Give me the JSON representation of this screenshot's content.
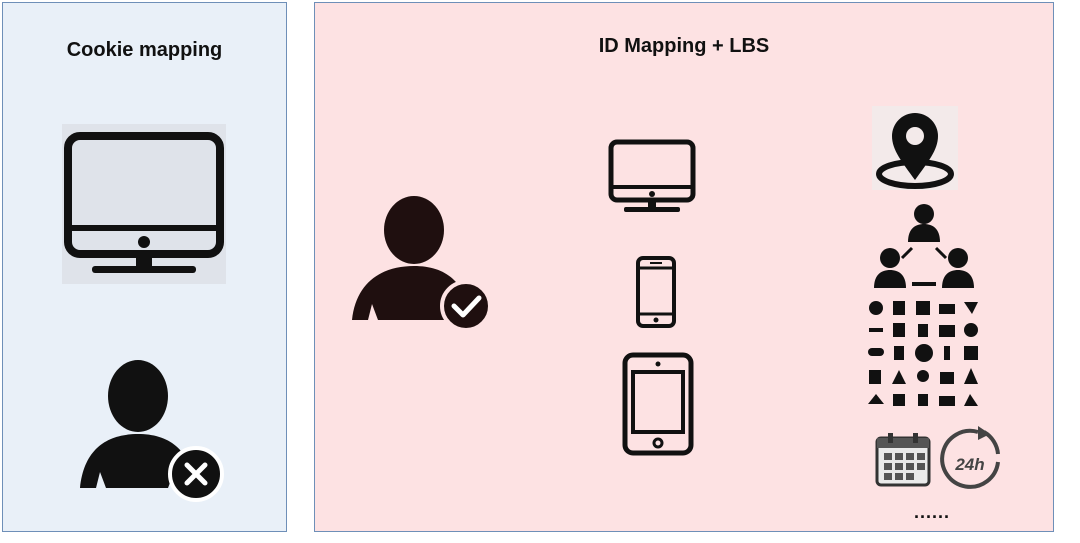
{
  "left_panel": {
    "title": "Cookie mapping",
    "icons": [
      "monitor-icon",
      "user-unverified-icon"
    ]
  },
  "right_panel": {
    "title": "ID Mapping + LBS",
    "icons": [
      "user-verified-icon",
      "monitor-icon",
      "smartphone-icon",
      "tablet-icon",
      "location-pin-icon",
      "social-network-icon",
      "activity-icons-grid",
      "calendar-icon",
      "clock-24h-icon"
    ],
    "ellipsis": "......",
    "clock_label": "24h"
  },
  "colors": {
    "left_bg": "#e9f0f8",
    "right_bg": "#fde2e3",
    "border": "#6e8fb8",
    "icon": "#1a1212"
  }
}
